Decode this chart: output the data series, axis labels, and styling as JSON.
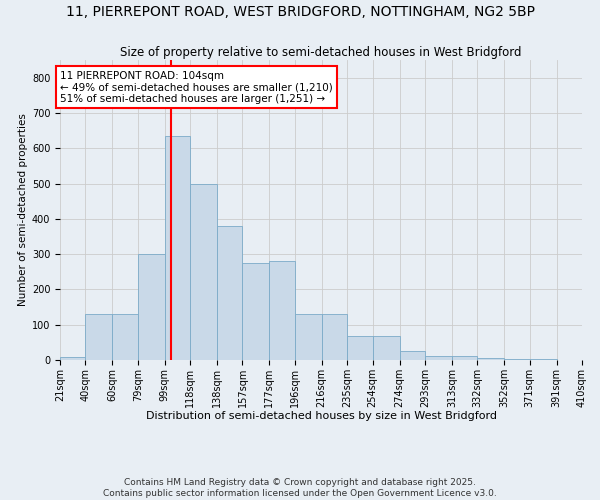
{
  "title": "11, PIERREPONT ROAD, WEST BRIDGFORD, NOTTINGHAM, NG2 5BP",
  "subtitle": "Size of property relative to semi-detached houses in West Bridgford",
  "xlabel": "Distribution of semi-detached houses by size in West Bridgford",
  "ylabel": "Number of semi-detached properties",
  "bin_labels": [
    "21sqm",
    "40sqm",
    "60sqm",
    "79sqm",
    "99sqm",
    "118sqm",
    "138sqm",
    "157sqm",
    "177sqm",
    "196sqm",
    "216sqm",
    "235sqm",
    "254sqm",
    "274sqm",
    "293sqm",
    "313sqm",
    "332sqm",
    "352sqm",
    "371sqm",
    "391sqm",
    "410sqm"
  ],
  "bin_edges": [
    21,
    40,
    60,
    79,
    99,
    118,
    138,
    157,
    177,
    196,
    216,
    235,
    254,
    274,
    293,
    313,
    332,
    352,
    371,
    391,
    410
  ],
  "bar_heights": [
    8,
    130,
    130,
    300,
    635,
    500,
    380,
    275,
    280,
    130,
    130,
    68,
    68,
    25,
    12,
    12,
    5,
    4,
    2,
    1,
    0
  ],
  "bar_color": "#c9d9e8",
  "bar_edgecolor": "#7baac8",
  "property_size": 104,
  "vline_color": "red",
  "annotation_text": "11 PIERREPONT ROAD: 104sqm\n← 49% of semi-detached houses are smaller (1,210)\n51% of semi-detached houses are larger (1,251) →",
  "annotation_box_color": "white",
  "annotation_box_edgecolor": "red",
  "ylim": [
    0,
    850
  ],
  "yticks": [
    0,
    100,
    200,
    300,
    400,
    500,
    600,
    700,
    800
  ],
  "grid_color": "#cccccc",
  "background_color": "#e8eef4",
  "footer_text": "Contains HM Land Registry data © Crown copyright and database right 2025.\nContains public sector information licensed under the Open Government Licence v3.0.",
  "title_fontsize": 10,
  "subtitle_fontsize": 8.5,
  "xlabel_fontsize": 8,
  "ylabel_fontsize": 7.5,
  "tick_fontsize": 7,
  "annotation_fontsize": 7.5,
  "footer_fontsize": 6.5
}
